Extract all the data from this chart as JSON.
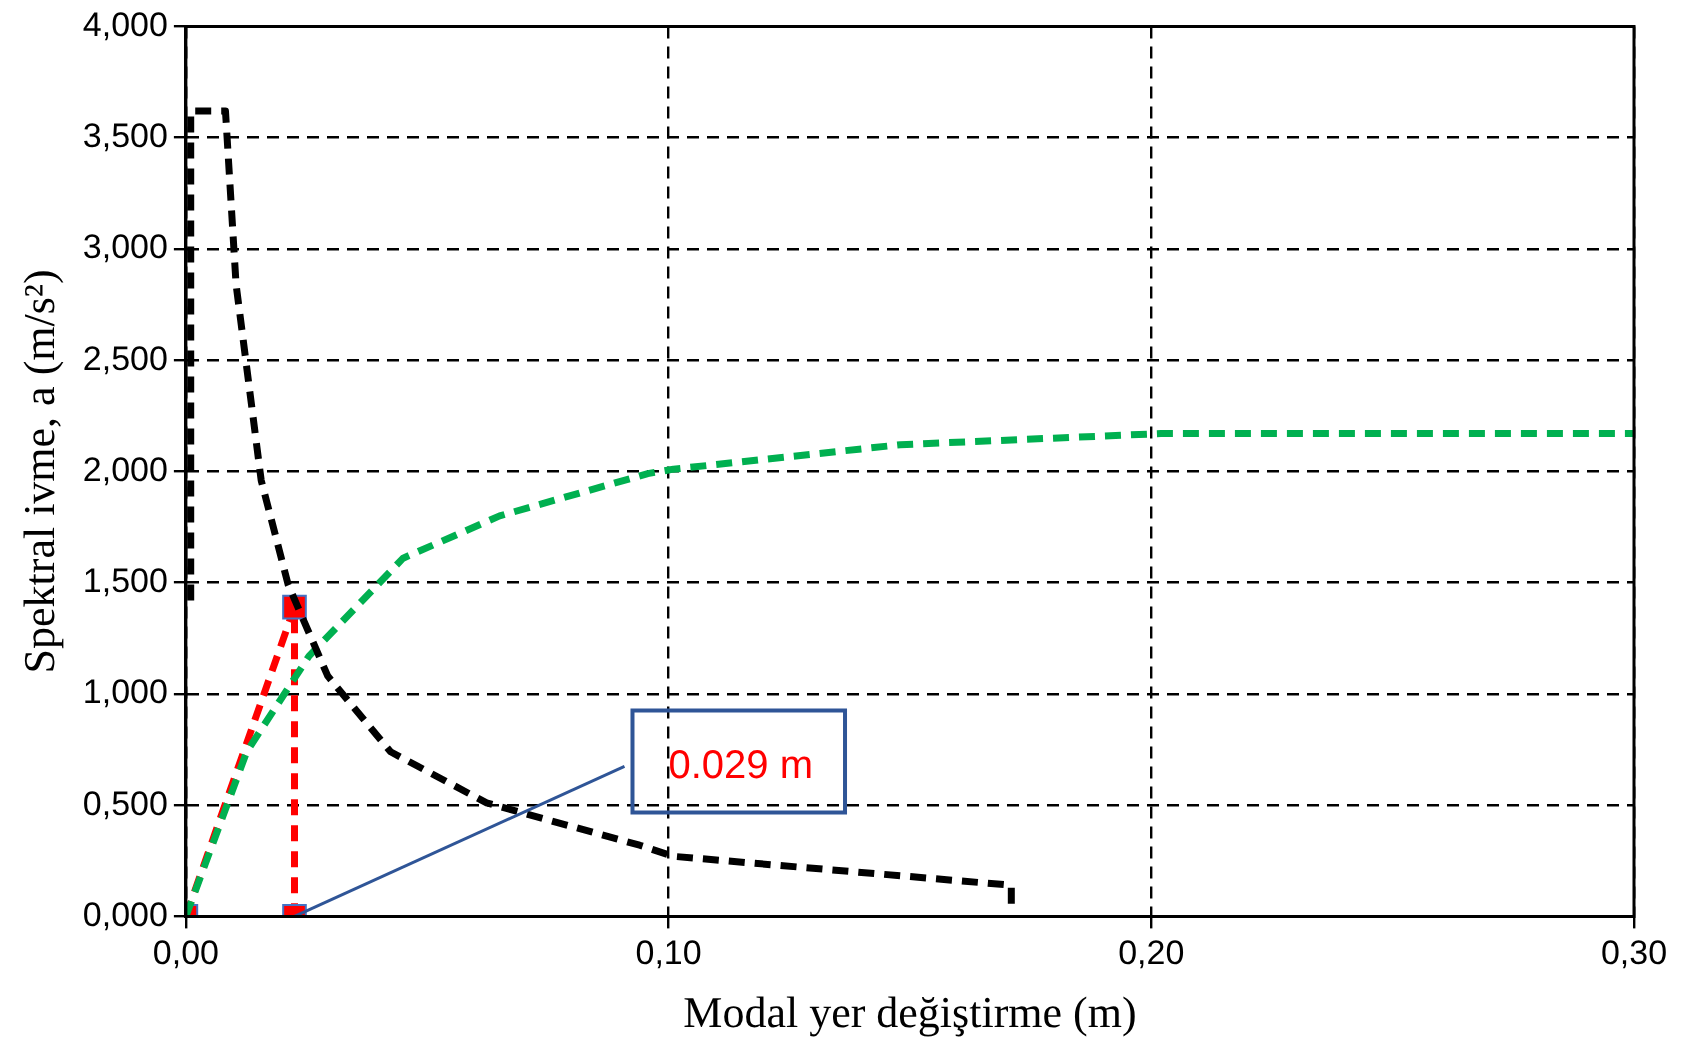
{
  "chart_data": {
    "type": "line",
    "xlabel": "Modal yer değiştirme (m)",
    "ylabel": "Spektral ivme, a (m/s²)",
    "xlim": [
      0,
      0.3
    ],
    "xticks": [
      {
        "value": 0,
        "label": "0,00"
      },
      {
        "value": 0.1,
        "label": "0,10"
      },
      {
        "value": 0.2,
        "label": "0,20"
      },
      {
        "value": 0.3,
        "label": "0,30"
      }
    ],
    "ylim": [
      0,
      4
    ],
    "yticks": [
      {
        "value": 0,
        "label": "0,000"
      },
      {
        "value": 0.5,
        "label": "0,500"
      },
      {
        "value": 1,
        "label": "1,000"
      },
      {
        "value": 1.5,
        "label": "1,500"
      },
      {
        "value": 2,
        "label": "2,000"
      },
      {
        "value": 2.5,
        "label": "2,500"
      },
      {
        "value": 3,
        "label": "3,000"
      },
      {
        "value": 3.5,
        "label": "3,500"
      },
      {
        "value": 4,
        "label": "4,000"
      }
    ],
    "grid": true,
    "legend": false,
    "line_style": "dashed",
    "series": [
      {
        "color": "#000000",
        "marker": "none",
        "x": [
          0.001,
          0.001,
          0.0082,
          0.0104,
          0.0156,
          0.0212,
          0.0294,
          0.0424,
          0.0623,
          0.094,
          0.101,
          0.171,
          0.171
        ],
        "values": [
          1.42,
          3.62,
          3.62,
          2.84,
          1.96,
          1.49,
          1.08,
          0.74,
          0.51,
          0.32,
          0.27,
          0.14,
          0.02
        ]
      },
      {
        "color": "#00b050",
        "marker": "none",
        "x": [
          0,
          0.0126,
          0.0255,
          0.045,
          0.065,
          0.0957,
          0.101,
          0.148,
          0.202,
          0.3
        ],
        "values": [
          0,
          0.74,
          1.17,
          1.61,
          1.8,
          1.99,
          2.01,
          2.12,
          2.17,
          2.17
        ]
      },
      {
        "color": "#ff0000",
        "marker": "square",
        "x": [
          0,
          0.0225,
          0.0225
        ],
        "values": [
          0,
          1.39,
          0
        ]
      }
    ],
    "annotations": [
      {
        "text": "0.029 m",
        "x": 0.0225,
        "y": 0
      }
    ]
  }
}
